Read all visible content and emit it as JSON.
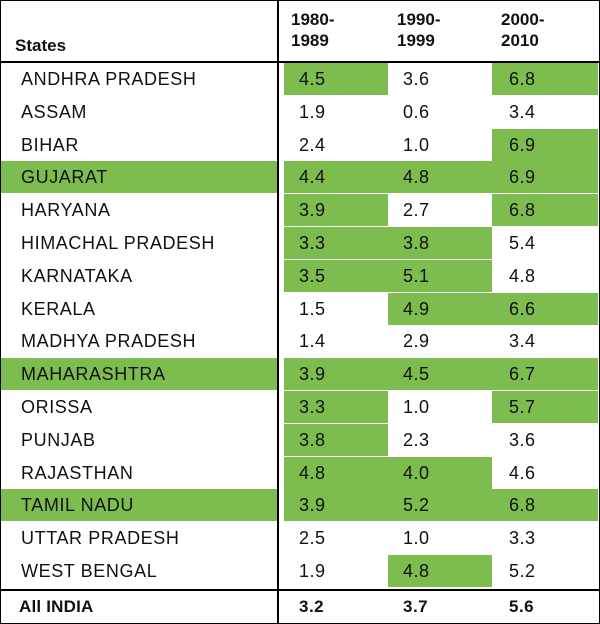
{
  "header": {
    "states_label": "States",
    "periods": [
      {
        "line1": "1980-",
        "line2": "1989"
      },
      {
        "line1": "1990-",
        "line2": "1999"
      },
      {
        "line1": "2000-",
        "line2": "2010"
      }
    ]
  },
  "colors": {
    "highlight": "#7dbd4f"
  },
  "rows": [
    {
      "state": "ANDHRA PRADESH",
      "values": [
        "4.5",
        "3.6",
        "6.8"
      ],
      "state_hl": false,
      "hl": [
        true,
        false,
        true
      ]
    },
    {
      "state": "ASSAM",
      "values": [
        "1.9",
        "0.6",
        "3.4"
      ],
      "state_hl": false,
      "hl": [
        false,
        false,
        false
      ]
    },
    {
      "state": "BIHAR",
      "values": [
        "2.4",
        "1.0",
        "6.9"
      ],
      "state_hl": false,
      "hl": [
        false,
        false,
        true
      ]
    },
    {
      "state": "GUJARAT",
      "values": [
        "4.4",
        "4.8",
        "6.9"
      ],
      "state_hl": true,
      "hl": [
        true,
        true,
        true
      ]
    },
    {
      "state": "HARYANA",
      "values": [
        "3.9",
        "2.7",
        "6.8"
      ],
      "state_hl": false,
      "hl": [
        true,
        false,
        true
      ]
    },
    {
      "state": "HIMACHAL PRADESH",
      "values": [
        "3.3",
        "3.8",
        "5.4"
      ],
      "state_hl": false,
      "hl": [
        true,
        true,
        false
      ]
    },
    {
      "state": "KARNATAKA",
      "values": [
        "3.5",
        "5.1",
        "4.8"
      ],
      "state_hl": false,
      "hl": [
        true,
        true,
        false
      ]
    },
    {
      "state": "KERALA",
      "values": [
        "1.5",
        "4.9",
        "6.6"
      ],
      "state_hl": false,
      "hl": [
        false,
        true,
        true
      ]
    },
    {
      "state": "MADHYA PRADESH",
      "values": [
        "1.4",
        "2.9",
        "3.4"
      ],
      "state_hl": false,
      "hl": [
        false,
        false,
        false
      ]
    },
    {
      "state": "MAHARASHTRA",
      "values": [
        "3.9",
        "4.5",
        "6.7"
      ],
      "state_hl": true,
      "hl": [
        true,
        true,
        true
      ]
    },
    {
      "state": "ORISSA",
      "values": [
        "3.3",
        "1.0",
        "5.7"
      ],
      "state_hl": false,
      "hl": [
        true,
        false,
        true
      ]
    },
    {
      "state": "PUNJAB",
      "values": [
        "3.8",
        "2.3",
        "3.6"
      ],
      "state_hl": false,
      "hl": [
        true,
        false,
        false
      ]
    },
    {
      "state": "RAJASTHAN",
      "values": [
        "4.8",
        "4.0",
        "4.6"
      ],
      "state_hl": false,
      "hl": [
        true,
        true,
        false
      ]
    },
    {
      "state": "TAMIL NADU",
      "values": [
        "3.9",
        "5.2",
        "6.8"
      ],
      "state_hl": true,
      "hl": [
        true,
        true,
        true
      ]
    },
    {
      "state": "UTTAR PRADESH",
      "values": [
        "2.5",
        "1.0",
        "3.3"
      ],
      "state_hl": false,
      "hl": [
        false,
        false,
        false
      ]
    },
    {
      "state": "WEST BENGAL",
      "values": [
        "1.9",
        "4.8",
        "5.2"
      ],
      "state_hl": false,
      "hl": [
        false,
        true,
        false
      ]
    }
  ],
  "total": {
    "state": "All INDIA",
    "values": [
      "3.2",
      "3.7",
      "5.6"
    ]
  }
}
